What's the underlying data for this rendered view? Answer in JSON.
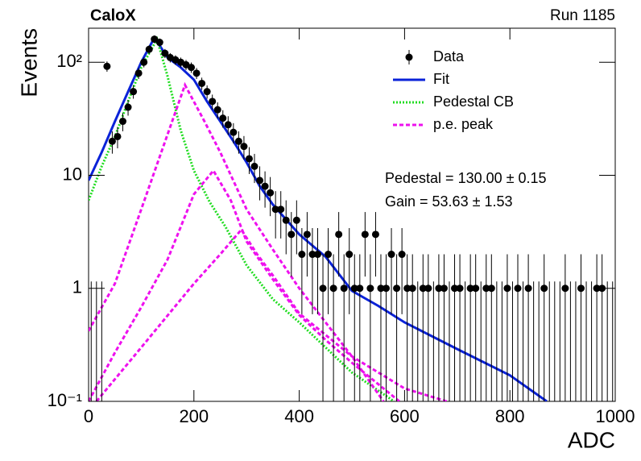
{
  "chart_data": {
    "type": "errorbar",
    "title": "CaloX",
    "subtitle": "Run 1185",
    "xlabel": "ADC",
    "ylabel": "Events",
    "annotations": [
      "Pedestal = 130.00 ± 0.15",
      "Gain = 53.63 ± 1.53"
    ],
    "log_y": true,
    "legend": "upper right",
    "xlim": [
      0,
      1000
    ],
    "xticks": [
      0,
      200,
      400,
      600,
      800,
      1000
    ],
    "ylim": [
      0.1,
      200
    ],
    "yticks": [
      {
        "value": 0.1,
        "label": "10⁻¹"
      },
      1,
      10,
      {
        "value": 100,
        "label": "10²"
      }
    ],
    "data": {
      "name": "Data",
      "color": "#000000",
      "x": [
        5,
        15,
        25,
        35,
        45,
        55,
        65,
        75,
        85,
        95,
        105,
        115,
        125,
        135,
        145,
        155,
        165,
        175,
        185,
        195,
        205,
        215,
        225,
        235,
        245,
        255,
        265,
        275,
        285,
        295,
        305,
        315,
        325,
        335,
        345,
        355,
        365,
        375,
        385,
        395,
        405,
        415,
        425,
        435,
        445,
        455,
        465,
        475,
        485,
        495,
        505,
        515,
        525,
        535,
        545,
        555,
        565,
        575,
        585,
        595,
        605,
        615,
        625,
        635,
        645,
        655,
        665,
        675,
        685,
        695,
        705,
        715,
        725,
        735,
        745,
        755,
        765,
        775,
        785,
        795,
        805,
        815,
        825,
        835,
        845,
        855,
        865,
        875,
        885,
        895,
        905,
        915,
        925,
        935,
        945,
        955,
        965,
        975,
        985,
        995
      ],
      "values": [
        0,
        0,
        0,
        92,
        20,
        22,
        30,
        40,
        55,
        80,
        100,
        130,
        160,
        150,
        120,
        110,
        105,
        100,
        95,
        90,
        80,
        65,
        55,
        45,
        38,
        32,
        28,
        24,
        20,
        18,
        14,
        12,
        9,
        8,
        7,
        5,
        5,
        4,
        3,
        4,
        2,
        3,
        2,
        2,
        1,
        2,
        1,
        3,
        1,
        2,
        1,
        1,
        3,
        1,
        3,
        1,
        1,
        2,
        1,
        2,
        1,
        1,
        0,
        1,
        1,
        0,
        1,
        1,
        0,
        1,
        1,
        0,
        1,
        1,
        0,
        1,
        1,
        0,
        0,
        1,
        0,
        1,
        0,
        1,
        0,
        0,
        1,
        0,
        0,
        0,
        1,
        0,
        0,
        1,
        0,
        0,
        1,
        1,
        0,
        0
      ],
      "errors": [
        1.15,
        1.15,
        1.15,
        9.59,
        4.47,
        4.69,
        5.48,
        6.32,
        7.42,
        8.94,
        10,
        11.4,
        12.65,
        12.25,
        10.95,
        10.49,
        10.25,
        10,
        9.75,
        9.49,
        8.94,
        8.06,
        7.42,
        6.71,
        6.16,
        5.66,
        5.29,
        4.9,
        4.47,
        4.24,
        3.74,
        3.46,
        3,
        2.83,
        2.65,
        2.24,
        2.24,
        2,
        1.73,
        2,
        1.41,
        1.73,
        1.41,
        1.41,
        1,
        1.41,
        1,
        1.73,
        1,
        1.41,
        1,
        1,
        1.73,
        1,
        1.73,
        1,
        1,
        1.41,
        1,
        1.41,
        1,
        1,
        1.15,
        1,
        1,
        1.15,
        1,
        1,
        1.15,
        1,
        1,
        1.15,
        1,
        1,
        1.15,
        1,
        1,
        1.15,
        1.15,
        1,
        1.15,
        1,
        1.15,
        1,
        1.15,
        1.15,
        1,
        1.15,
        1.15,
        1.15,
        1,
        1.15,
        1.15,
        1,
        1.15,
        1.15,
        1,
        1,
        1.15,
        1.15
      ]
    },
    "series": [
      {
        "name": "Fit",
        "color": "#0a22d8",
        "style": "solid",
        "curves": [
          {
            "x": [
              0,
              25,
              50,
              75,
              100,
              125,
              150,
              175,
              200,
              225,
              250,
              275,
              300,
              325,
              350,
              400,
              450,
              500,
              550,
              600,
              700,
              800,
              870
            ],
            "values": [
              9,
              16,
              30,
              55,
              100,
              165,
              110,
              90,
              70,
              45,
              30,
              20,
              13,
              8,
              5.5,
              3,
              1.9,
              0.95,
              0.7,
              0.5,
              0.29,
              0.17,
              0.1
            ]
          }
        ]
      },
      {
        "name": "Pedestal CB",
        "color": "#22dd22",
        "style": "dotted",
        "curves": [
          {
            "x": [
              0,
              25,
              50,
              75,
              100,
              130,
              150,
              175,
              200,
              230,
              260,
              300,
              350,
              400,
              450,
              500,
              580
            ],
            "values": [
              6,
              12,
              22,
              45,
              90,
              160,
              75,
              25,
              11,
              5.8,
              3.5,
              1.6,
              0.8,
              0.5,
              0.3,
              0.18,
              0.1
            ]
          }
        ]
      },
      {
        "name": "p.e. peak",
        "color": "#ee11ee",
        "style": "dashed",
        "curves": [
          {
            "x": [
              0,
              50,
              100,
              150,
              183,
              220,
              250,
              300,
              350,
              400,
              450,
              500,
              560
            ],
            "values": [
              0.42,
              1.1,
              5,
              23,
              63,
              30,
              16,
              5,
              2.2,
              1.0,
              0.5,
              0.25,
              0.1
            ]
          },
          {
            "x": [
              0,
              50,
              100,
              150,
              200,
              237,
              270,
              300,
              350,
              400,
              450,
              500,
              590
            ],
            "values": [
              0.1,
              0.27,
              0.68,
              1.8,
              6.8,
              11,
              6,
              2.6,
              1.2,
              0.58,
              0.35,
              0.22,
              0.1
            ]
          },
          {
            "x": [
              15,
              100,
              200,
              250,
              290,
              320,
              350,
              400,
              500,
              600,
              680
            ],
            "values": [
              0.1,
              0.3,
              1.1,
              2,
              3.3,
              2,
              1.3,
              0.6,
              0.25,
              0.13,
              0.1
            ]
          }
        ]
      }
    ]
  }
}
